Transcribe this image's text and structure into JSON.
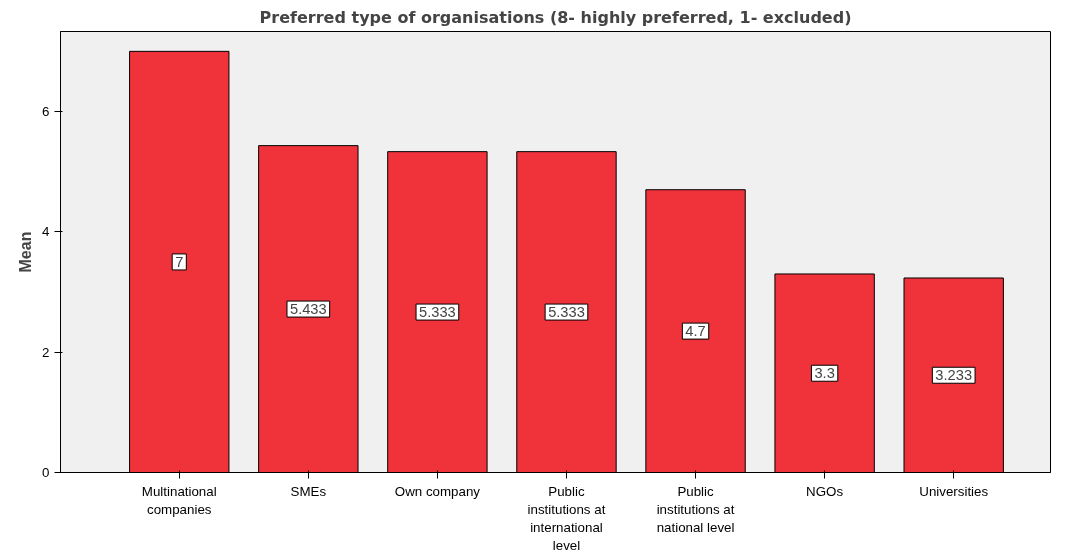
{
  "chart_data": {
    "type": "bar",
    "title": "Preferred type of organisations (8- highly preferred, 1- excluded)",
    "ylabel": "Mean",
    "categories": [
      "Multinational companies",
      "SMEs",
      "Own company",
      "Public institutions at international level",
      "Public institutions at national level",
      "NGOs",
      "Universities"
    ],
    "values": [
      7,
      5.433,
      5.333,
      5.333,
      4.7,
      3.3,
      3.233
    ],
    "color": "#f0323a",
    "ylim": [
      0,
      7.33
    ],
    "yticks": [
      0,
      2,
      4,
      6
    ],
    "grid": false,
    "data_labels": true
  }
}
